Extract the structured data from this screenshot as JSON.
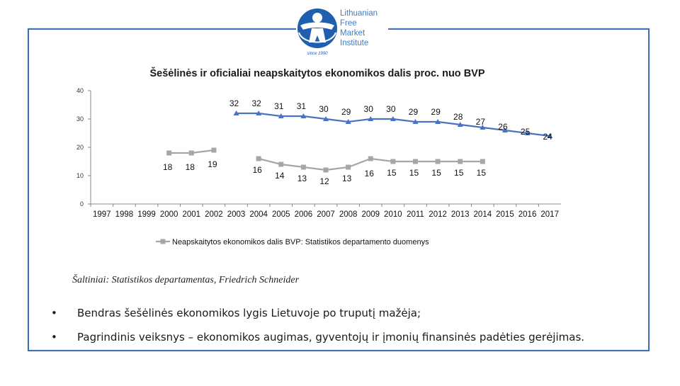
{
  "logo": {
    "lines": [
      "Lithuanian",
      "Free",
      "Market",
      "Institute"
    ],
    "badge": "since 1990"
  },
  "chart_data": {
    "type": "line",
    "title": "Šešėlinės ir oficialiai neapskaitytos ekonomikos dalis proc. nuo BVP",
    "ylim": [
      0,
      40
    ],
    "yticks": [
      0,
      10,
      20,
      30,
      40
    ],
    "categories": [
      "1997",
      "1998",
      "1999",
      "2000",
      "2001",
      "2002",
      "2003",
      "2004",
      "2005",
      "2006",
      "2007",
      "2008",
      "2009",
      "2010",
      "2011",
      "2012",
      "2013",
      "2014",
      "2015",
      "2016",
      "2017"
    ],
    "series": [
      {
        "name": "Friedrich Schneider",
        "color": "#4a72c4",
        "marker": "triangle",
        "values": [
          null,
          null,
          null,
          null,
          null,
          null,
          32,
          32,
          31,
          31,
          30,
          29,
          30,
          30,
          29,
          29,
          28,
          27,
          26,
          25,
          24
        ],
        "labels": [
          "",
          "",
          "",
          "",
          "",
          "",
          "32",
          "32",
          "31",
          "31",
          "30",
          "29",
          "30",
          "30",
          "29",
          "29",
          "28",
          "27",
          "26",
          "25",
          "24"
        ]
      },
      {
        "name": "Neapskaitytos ekonomikos dalis BVP: Statistikos departamento duomenys",
        "color": "#a6a6a6",
        "marker": "square",
        "values": [
          null,
          null,
          null,
          18,
          18,
          19,
          null,
          16,
          14,
          13,
          12,
          13,
          16,
          15,
          15,
          15,
          15,
          15,
          null,
          null,
          null
        ],
        "labels": [
          "",
          "",
          "",
          "18",
          "18",
          "19",
          "",
          "16",
          "14",
          "13",
          "12",
          "13",
          "16",
          "15",
          "15",
          "15",
          "15",
          "15",
          "",
          "",
          ""
        ]
      }
    ],
    "legend": "Neapskaitytos ekonomikos dalis BVP: Statistikos departamento duomenys"
  },
  "source": "Šaltiniai: Statistikos departamentas, Friedrich Schneider",
  "bullets": [
    "Bendras šešėlinės ekonomikos lygis Lietuvoje po truputį mažėja;",
    "Pagrindinis veiksnys – ekonomikos augimas, gyventojų ir įmonių finansinės padėties gerėjimas."
  ],
  "bullet_char": "•"
}
